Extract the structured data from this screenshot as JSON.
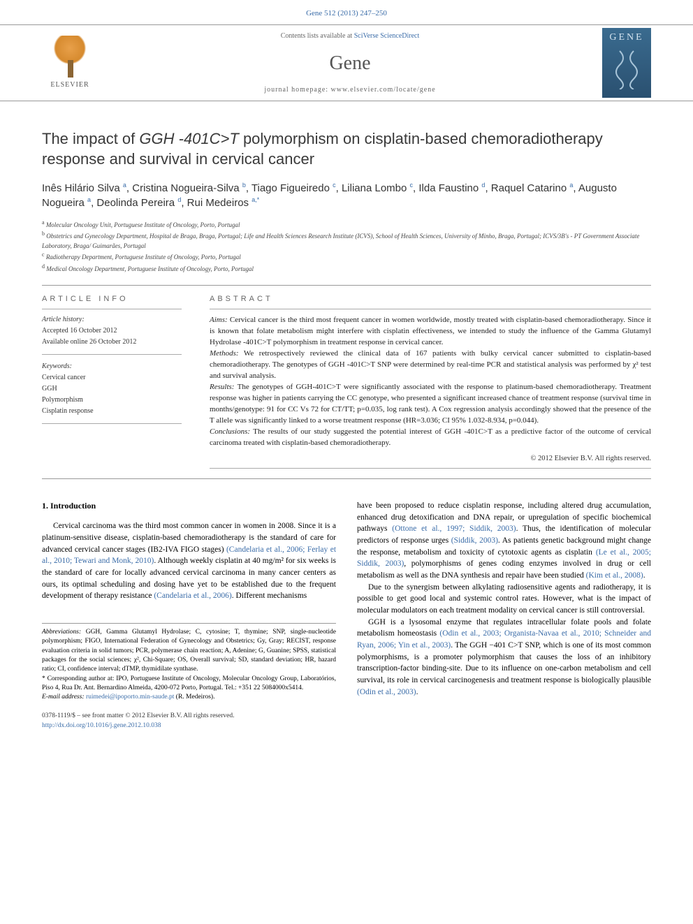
{
  "header": {
    "citation": "Gene 512 (2013) 247–250",
    "contents_prefix": "Contents lists available at ",
    "contents_link": "SciVerse ScienceDirect",
    "journal_name": "Gene",
    "homepage_prefix": "journal homepage: ",
    "homepage_url": "www.elsevier.com/locate/gene",
    "elsevier_label": "ELSEVIER",
    "cover_title": "GENE"
  },
  "article": {
    "title_pre": "The impact of ",
    "title_gene": "GGH -401C>T",
    "title_post": " polymorphism on cisplatin-based chemoradiotherapy response and survival in cervical cancer",
    "authors_html": "Inês Hilário Silva ",
    "authors": [
      {
        "name": "Inês Hilário Silva",
        "sup": "a"
      },
      {
        "name": "Cristina Nogueira-Silva",
        "sup": "b"
      },
      {
        "name": "Tiago Figueiredo",
        "sup": "c"
      },
      {
        "name": "Liliana Lombo",
        "sup": "c"
      },
      {
        "name": "Ilda Faustino",
        "sup": "d"
      },
      {
        "name": "Raquel Catarino",
        "sup": "a"
      },
      {
        "name": "Augusto Nogueira",
        "sup": "a"
      },
      {
        "name": "Deolinda Pereira",
        "sup": "d"
      },
      {
        "name": "Rui Medeiros",
        "sup": "a,*"
      }
    ],
    "affiliations": [
      {
        "sup": "a",
        "text": "Molecular Oncology Unit, Portuguese Institute of Oncology, Porto, Portugal"
      },
      {
        "sup": "b",
        "text": "Obstetrics and Gynecology Department, Hospital de Braga, Braga, Portugal; Life and Health Sciences Research Institute (ICVS), School of Health Sciences, University of Minho, Braga, Portugal; ICVS/3B's - PT Government Associate Laboratory, Braga/ Guimarães, Portugal"
      },
      {
        "sup": "c",
        "text": "Radiotherapy Department, Portuguese Institute of Oncology, Porto, Portugal"
      },
      {
        "sup": "d",
        "text": "Medical Oncology Department, Portuguese Institute of Oncology, Porto, Portugal"
      }
    ]
  },
  "info": {
    "heading": "ARTICLE INFO",
    "history_label": "Article history:",
    "accepted": "Accepted 16 October 2012",
    "online": "Available online 26 October 2012",
    "keywords_label": "Keywords:",
    "keywords": [
      "Cervical cancer",
      "GGH",
      "Polymorphism",
      "Cisplatin response"
    ]
  },
  "abstract": {
    "heading": "ABSTRACT",
    "aims_label": "Aims:",
    "aims": " Cervical cancer is the third most frequent cancer in women worldwide, mostly treated with cisplatin-based chemoradiotherapy. Since it is known that folate metabolism might interfere with cisplatin effectiveness, we intended to study the influence of the Gamma Glutamyl Hydrolase -401C>T polymorphism in treatment response in cervical cancer.",
    "methods_label": "Methods:",
    "methods": " We retrospectively reviewed the clinical data of 167 patients with bulky cervical cancer submitted to cisplatin-based chemoradiotherapy. The genotypes of GGH -401C>T SNP were determined by real-time PCR and statistical analysis was performed by χ² test and survival analysis.",
    "results_label": "Results:",
    "results": " The genotypes of GGH-401C>T were significantly associated with the response to platinum-based chemoradiotherapy. Treatment response was higher in patients carrying the CC genotype, who presented a significant increased chance of treatment response (survival time in months/genotype: 91 for CC Vs 72 for CT/TT; p=0.035, log rank test). A Cox regression analysis accordingly showed that the presence of the T allele was significantly linked to a worse treatment response (HR=3.036; CI 95% 1.032-8.934, p=0.044).",
    "conclusions_label": "Conclusions:",
    "conclusions": " The results of our study suggested the potential interest of GGH -401C>T as a predictive factor of the outcome of cervical carcinoma treated with cisplatin-based chemoradiotherapy.",
    "copyright": "© 2012 Elsevier B.V. All rights reserved."
  },
  "body": {
    "intro_heading": "1. Introduction",
    "col1_p1": "Cervical carcinoma was the third most common cancer in women in 2008. Since it is a platinum-sensitive disease, cisplatin-based chemoradiotherapy is the standard of care for advanced cervical cancer stages (IB2-IVA FIGO stages) (Candelaria et al., 2006; Ferlay et al., 2010; Tewari and Monk, 2010). Although weekly cisplatin at 40 mg/m² for six weeks is the standard of care for locally advanced cervical carcinoma in many cancer centers as ours, its optimal scheduling and dosing have yet to be established due to the frequent development of therapy resistance (Candelaria et al., 2006). Different mechanisms",
    "col2_p1": "have been proposed to reduce cisplatin response, including altered drug accumulation, enhanced drug detoxification and DNA repair, or upregulation of specific biochemical pathways (Ottone et al., 1997; Siddik, 2003). Thus, the identification of molecular predictors of response urges (Siddik, 2003). As patients genetic background might change the response, metabolism and toxicity of cytotoxic agents as cisplatin (Le et al., 2005; Siddik, 2003), polymorphisms of genes coding enzymes involved in drug or cell metabolism as well as the DNA synthesis and repair have been studied (Kim et al., 2008).",
    "col2_p2": "Due to the synergism between alkylating radiosensitive agents and radiotherapy, it is possible to get good local and systemic control rates. However, what is the impact of molecular modulators on each treatment modality on cervical cancer is still controversial.",
    "col2_p3": "GGH is a lysosomal enzyme that regulates intracellular folate pools and folate metabolism homeostasis (Odin et al., 2003; Organista-Navaa et al., 2010; Schneider and Ryan, 2006; Yin et al., 2003). The GGH −401 C>T SNP, which is one of its most common polymorphisms, is a promoter polymorphism that causes the loss of an inhibitory transcription-factor binding-site. Due to its influence on one-carbon metabolism and cell survival, its role in cervical carcinogenesis and treatment response is biologically plausible (Odin et al., 2003)."
  },
  "footnotes": {
    "abbrev_label": "Abbreviations:",
    "abbrev": " GGH, Gamma Glutamyl Hydrolase; C, cytosine; T, thymine; SNP, single-nucleotide polymorphism; FIGO, International Federation of Gynecology and Obstetrics; Gy, Gray; RECIST, response evaluation criteria in solid tumors; PCR, polymerase chain reaction; A, Adenine; G, Guanine; SPSS, statistical packages for the social sciences; χ², Chi-Square; OS, Overall survival; SD, standard deviation; HR, hazard ratio; CI, confidence interval; dTMP, thymidilate synthase.",
    "corr_label": "*",
    "corr": " Corresponding author at: IPO, Portuguese Institute of Oncology, Molecular Oncology Group, Laboratórios, Piso 4, Rua Dr. Ant. Bernardino Almeida, 4200-072 Porto, Portugal. Tel.: +351 22 5084000x5414.",
    "email_label": "E-mail address:",
    "email": "ruimedei@ipoporto.min-saude.pt",
    "email_person": " (R. Medeiros)."
  },
  "bottom": {
    "issn": "0378-1119/$ – see front matter © 2012 Elsevier B.V. All rights reserved.",
    "doi": "http://dx.doi.org/10.1016/j.gene.2012.10.038"
  },
  "colors": {
    "link": "#3a6ca8",
    "text": "#000000",
    "heading_gray": "#666666",
    "border": "#999999"
  }
}
